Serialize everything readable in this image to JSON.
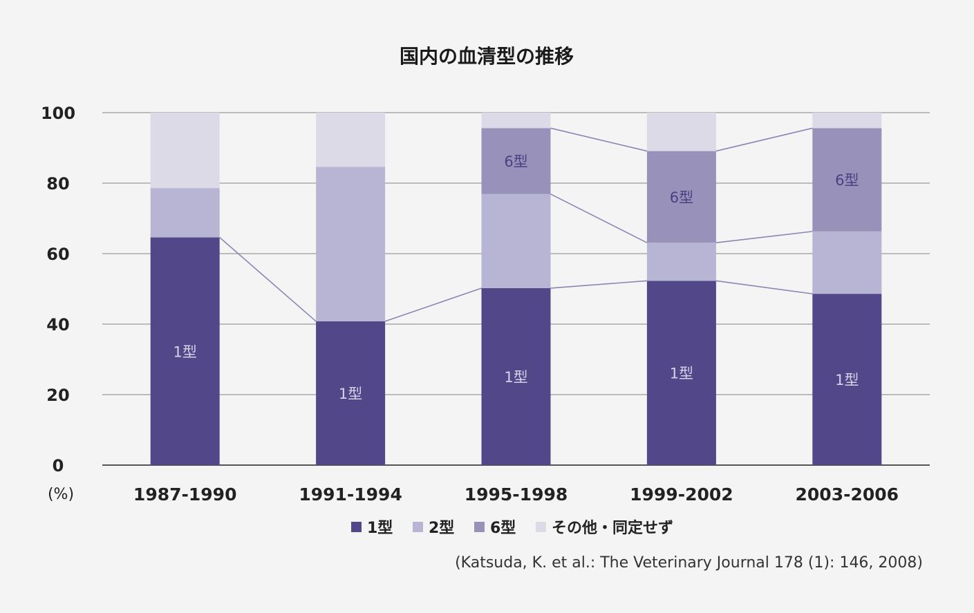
{
  "chart_data": {
    "type": "bar",
    "stacked": true,
    "title": "国内の血清型の推移",
    "ylabel": "(%)",
    "ylim": [
      0,
      100
    ],
    "yticks": [
      "0",
      "20",
      "40",
      "60",
      "80",
      "100"
    ],
    "grid": true,
    "categories": [
      "1987-1990",
      "1991-1994",
      "1995-1998",
      "1999-2002",
      "2003-2006"
    ],
    "series": [
      {
        "name": "1型",
        "values": [
          64.6,
          40.8,
          50.2,
          52.3,
          48.6
        ],
        "color": "#514789"
      },
      {
        "name": "2型",
        "values": [
          14.0,
          43.8,
          26.7,
          10.8,
          17.7
        ],
        "color": "#b8b4d3"
      },
      {
        "name": "6型",
        "values": [
          0,
          0,
          18.7,
          26.0,
          29.3
        ],
        "color": "#9892bb"
      },
      {
        "name": "その他・同定せず",
        "values": [
          21.4,
          15.4,
          4.4,
          10.9,
          4.4
        ],
        "color": "#dcdae6"
      }
    ],
    "bar_labels": [
      {
        "series": "1型",
        "category": "1987-1990",
        "text": "1型"
      },
      {
        "series": "1型",
        "category": "1991-1994",
        "text": "1型"
      },
      {
        "series": "1型",
        "category": "1995-1998",
        "text": "1型"
      },
      {
        "series": "1型",
        "category": "1999-2002",
        "text": "1型"
      },
      {
        "series": "1型",
        "category": "2003-2006",
        "text": "1型"
      },
      {
        "series": "6型",
        "category": "1995-1998",
        "text": "6型"
      },
      {
        "series": "6型",
        "category": "1999-2002",
        "text": "6型"
      },
      {
        "series": "6型",
        "category": "2003-2006",
        "text": "6型"
      }
    ],
    "legend_position": "bottom",
    "source": "(Katsuda, K. et al.: The Veterinary Journal 178 (1): 146, 2008)",
    "colors": {
      "grid": "#a8a8a8",
      "connector": "#8a86b4",
      "axis": "#555555",
      "label_light": "#d6d3e8",
      "label_dark": "#4a4080"
    }
  }
}
